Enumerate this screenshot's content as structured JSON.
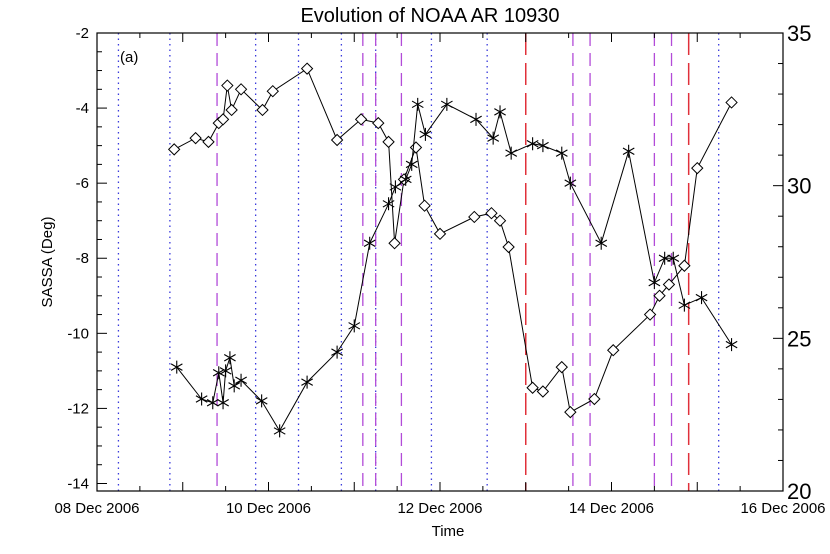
{
  "chart_data": {
    "type": "line",
    "title": "Evolution of NOAA AR 10930",
    "panel_label": "(a)",
    "xlabel": "Time",
    "ylabel": "SASSA (Deg)",
    "x_unit": "days",
    "xlim": [
      0,
      8
    ],
    "ylim": [
      -14.2,
      -2
    ],
    "y2lim": [
      20,
      35
    ],
    "x_tick_labels": [
      {
        "x": 0,
        "label": "08 Dec 2006"
      },
      {
        "x": 2,
        "label": "10 Dec 2006"
      },
      {
        "x": 4,
        "label": "12 Dec 2006"
      },
      {
        "x": 6,
        "label": "14 Dec 2006"
      },
      {
        "x": 8,
        "label": "16 Dec 2006"
      }
    ],
    "y_ticks": [
      -14,
      -12,
      -10,
      -8,
      -6,
      -4,
      -2
    ],
    "y2_ticks": [
      20,
      25,
      30,
      35
    ],
    "vlines": [
      {
        "style": "blue-dotted",
        "x": [
          0.25,
          0.85,
          1.85,
          2.35,
          2.85,
          3.25,
          3.9,
          4.55,
          7.25
        ]
      },
      {
        "style": "purple-dashed",
        "x": [
          1.4,
          3.1,
          3.25,
          3.55,
          5.55,
          5.75,
          6.5,
          6.7
        ]
      },
      {
        "style": "red-longdash",
        "x": [
          5.0,
          6.9
        ]
      }
    ],
    "series": [
      {
        "marker": "diamond",
        "points": [
          [
            0.9,
            -5.1
          ],
          [
            1.15,
            -4.8
          ],
          [
            1.3,
            -4.9
          ],
          [
            1.42,
            -4.4
          ],
          [
            1.47,
            -4.3
          ],
          [
            1.52,
            -3.4
          ],
          [
            1.57,
            -4.05
          ],
          [
            1.68,
            -3.5
          ],
          [
            1.93,
            -4.05
          ],
          [
            2.05,
            -3.55
          ],
          [
            2.45,
            -2.95
          ],
          [
            2.8,
            -4.85
          ],
          [
            3.08,
            -4.3
          ],
          [
            3.28,
            -4.4
          ],
          [
            3.4,
            -4.9
          ],
          [
            3.47,
            -7.6
          ],
          [
            3.58,
            -5.9
          ],
          [
            3.72,
            -5.05
          ],
          [
            3.82,
            -6.6
          ],
          [
            4.0,
            -7.35
          ],
          [
            4.4,
            -6.9
          ],
          [
            4.6,
            -6.8
          ],
          [
            4.7,
            -7.0
          ],
          [
            4.8,
            -7.7
          ],
          [
            5.08,
            -11.45
          ],
          [
            5.2,
            -11.55
          ],
          [
            5.42,
            -10.9
          ],
          [
            5.52,
            -12.1
          ],
          [
            5.8,
            -11.75
          ],
          [
            6.02,
            -10.45
          ],
          [
            6.45,
            -9.5
          ],
          [
            6.56,
            -9.0
          ],
          [
            6.67,
            -8.7
          ],
          [
            6.85,
            -8.2
          ],
          [
            7.0,
            -5.6
          ],
          [
            7.4,
            -3.85
          ]
        ]
      },
      {
        "marker": "asterisk",
        "points": [
          [
            0.93,
            -10.9
          ],
          [
            1.22,
            -11.75
          ],
          [
            1.35,
            -11.85
          ],
          [
            1.42,
            -11.05
          ],
          [
            1.47,
            -11.85
          ],
          [
            1.5,
            -11.0
          ],
          [
            1.55,
            -10.65
          ],
          [
            1.6,
            -11.4
          ],
          [
            1.68,
            -11.25
          ],
          [
            1.92,
            -11.8
          ],
          [
            2.13,
            -12.6
          ],
          [
            2.45,
            -11.3
          ],
          [
            2.8,
            -10.5
          ],
          [
            3.0,
            -9.8
          ],
          [
            3.18,
            -7.6
          ],
          [
            3.4,
            -6.55
          ],
          [
            3.48,
            -6.1
          ],
          [
            3.6,
            -5.9
          ],
          [
            3.67,
            -5.5
          ],
          [
            3.74,
            -3.9
          ],
          [
            3.83,
            -4.7
          ],
          [
            4.08,
            -3.9
          ],
          [
            4.42,
            -4.3
          ],
          [
            4.62,
            -4.8
          ],
          [
            4.7,
            -4.1
          ],
          [
            4.83,
            -5.2
          ],
          [
            5.08,
            -4.95
          ],
          [
            5.2,
            -5.0
          ],
          [
            5.42,
            -5.2
          ],
          [
            5.52,
            -6.0
          ],
          [
            5.88,
            -7.6
          ],
          [
            6.2,
            -5.15
          ],
          [
            6.5,
            -8.65
          ],
          [
            6.62,
            -8.0
          ],
          [
            6.72,
            -8.0
          ],
          [
            6.85,
            -9.25
          ],
          [
            7.05,
            -9.05
          ],
          [
            7.4,
            -10.3
          ]
        ]
      }
    ]
  }
}
